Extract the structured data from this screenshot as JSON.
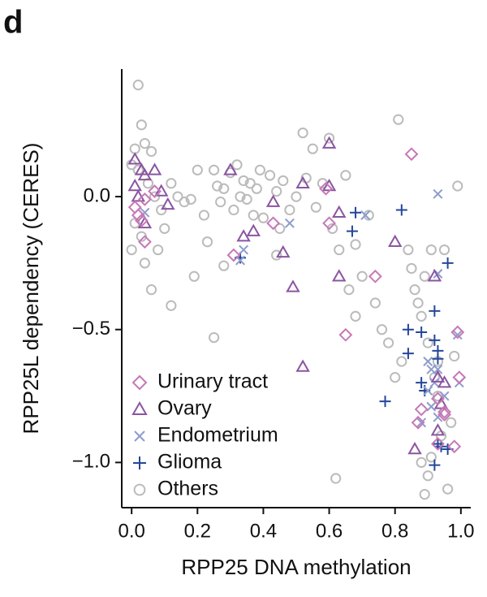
{
  "chart_data": {
    "type": "scatter",
    "panel_label": "d",
    "xlabel": "RPP25 DNA methylation",
    "ylabel": "RPP25L dependency (CERES)",
    "xlim": [
      -0.03,
      1.03
    ],
    "ylim": [
      -1.17,
      0.48
    ],
    "xticks": [
      {
        "value": 0,
        "label": "0.0"
      },
      0.2,
      0.4,
      0.6,
      0.8,
      {
        "value": 1,
        "label": "1.0"
      }
    ],
    "yticks": [
      {
        "value": 0,
        "label": "0.0"
      },
      {
        "value": -0.5,
        "label": "−0.5"
      },
      {
        "value": -1,
        "label": "−1.0"
      }
    ],
    "grid": false,
    "legend": "lower left",
    "series": [
      {
        "name": "Urinary tract",
        "color": "#c678b6",
        "marker": "diamond",
        "x": [
          0.85,
          0.995,
          0.74,
          0.65,
          0.59,
          0.6,
          0.43,
          0.31,
          0.04,
          0.02,
          0.04,
          0.01,
          0.07,
          0.99,
          0.87,
          0.88,
          0.95,
          0.93,
          0.95,
          0.93,
          0.98,
          0.03
        ],
        "values": [
          0.16,
          -0.68,
          -0.3,
          -0.52,
          0.03,
          -0.1,
          -0.1,
          -0.22,
          -0.17,
          -0.07,
          -0.01,
          -0.04,
          0.02,
          -0.51,
          -0.85,
          -0.8,
          -0.82,
          -0.76,
          -0.81,
          -0.93,
          -0.94,
          -0.09
        ]
      },
      {
        "name": "Ovary",
        "color": "#8a55a0",
        "marker": "triangle",
        "x": [
          0.6,
          0.01,
          0.03,
          0.04,
          0.07,
          0.3,
          0.43,
          0.52,
          0.6,
          0.09,
          0.11,
          0.37,
          0.34,
          0.46,
          0.49,
          0.52,
          0.63,
          0.8,
          0.01,
          0.02,
          0.04,
          0.86,
          0.93,
          0.94,
          0.92,
          0.95,
          0.93,
          0.63
        ],
        "values": [
          0.2,
          0.14,
          0.1,
          0.08,
          0.1,
          0.1,
          -0.02,
          0.05,
          0.04,
          0.02,
          -0.03,
          -0.13,
          -0.15,
          -0.21,
          -0.34,
          -0.64,
          -0.3,
          -0.17,
          0.04,
          0.0,
          -0.1,
          -0.95,
          -0.88,
          -0.78,
          -0.3,
          -0.7,
          -0.68,
          -0.06
        ]
      },
      {
        "name": "Endometrium",
        "color": "#8e9ccc",
        "marker": "x",
        "x": [
          0.93,
          0.71,
          0.48,
          0.34,
          0.33,
          0.99,
          0.995,
          0.9,
          0.91,
          0.92,
          0.93,
          0.9,
          0.93,
          0.95,
          0.88,
          0.91,
          0.04,
          0.93
        ],
        "values": [
          0.01,
          -0.07,
          -0.1,
          -0.2,
          -0.24,
          -0.52,
          -0.7,
          -0.62,
          -0.65,
          -0.7,
          -0.65,
          -0.73,
          -0.83,
          -0.75,
          -0.85,
          -0.79,
          -0.06,
          -0.29
        ]
      },
      {
        "name": "Glioma",
        "color": "#24479a",
        "marker": "plus",
        "x": [
          0.68,
          0.67,
          0.82,
          0.96,
          0.33,
          0.92,
          0.84,
          0.88,
          0.92,
          0.93,
          0.93,
          0.84,
          0.77,
          0.88,
          0.89,
          0.93,
          0.96,
          0.92,
          0.94
        ],
        "values": [
          -0.06,
          -0.13,
          -0.05,
          -0.25,
          -0.23,
          -0.43,
          -0.5,
          -0.51,
          -0.54,
          -0.58,
          -0.61,
          -0.59,
          -0.77,
          -0.7,
          -0.73,
          -0.93,
          -0.95,
          -1.01,
          -0.94
        ]
      },
      {
        "name": "Others",
        "color": "#bbbbbb",
        "marker": "circle",
        "x": [
          0.02,
          0.03,
          0.01,
          0.04,
          0.06,
          0.0,
          0.02,
          0.05,
          0.07,
          0.09,
          0.01,
          0.03,
          0.0,
          0.04,
          0.08,
          0.1,
          0.12,
          0.14,
          0.06,
          0.12,
          0.16,
          0.18,
          0.2,
          0.22,
          0.23,
          0.19,
          0.25,
          0.26,
          0.27,
          0.28,
          0.3,
          0.31,
          0.32,
          0.33,
          0.34,
          0.35,
          0.36,
          0.37,
          0.38,
          0.39,
          0.4,
          0.42,
          0.44,
          0.45,
          0.46,
          0.48,
          0.5,
          0.52,
          0.53,
          0.55,
          0.56,
          0.58,
          0.6,
          0.61,
          0.63,
          0.65,
          0.66,
          0.68,
          0.7,
          0.72,
          0.74,
          0.76,
          0.78,
          0.8,
          0.81,
          0.82,
          0.84,
          0.85,
          0.86,
          0.87,
          0.88,
          0.89,
          0.9,
          0.91,
          0.92,
          0.93,
          0.94,
          0.95,
          0.96,
          0.97,
          0.98,
          0.99,
          0.88,
          0.9,
          0.89,
          0.91,
          0.93,
          0.62,
          0.28,
          0.25,
          0.68,
          0.44
        ],
        "values": [
          0.42,
          0.27,
          0.18,
          0.2,
          0.17,
          0.12,
          0.1,
          0.05,
          0.0,
          -0.05,
          -0.1,
          -0.15,
          -0.2,
          -0.25,
          -0.2,
          -0.12,
          0.05,
          0.0,
          -0.35,
          -0.41,
          -0.02,
          -0.01,
          0.1,
          -0.07,
          -0.17,
          -0.3,
          0.1,
          0.04,
          -0.02,
          0.03,
          0.09,
          -0.05,
          0.12,
          0.0,
          0.06,
          -0.01,
          0.05,
          -0.07,
          0.03,
          0.1,
          -0.08,
          0.08,
          0.02,
          -0.12,
          0.06,
          -0.05,
          0.0,
          0.24,
          0.07,
          0.18,
          -0.04,
          0.05,
          0.22,
          -0.12,
          -0.2,
          0.08,
          -0.35,
          -0.45,
          -0.3,
          -0.07,
          -0.4,
          -0.5,
          -0.55,
          -0.68,
          0.29,
          -0.62,
          -0.2,
          -0.27,
          -0.35,
          -0.4,
          -0.45,
          -0.3,
          -0.55,
          -0.2,
          -0.68,
          -0.75,
          -0.9,
          -0.2,
          -1.1,
          -0.85,
          -0.6,
          0.04,
          -1.0,
          -1.05,
          -1.12,
          -0.98,
          -0.62,
          -1.06,
          -0.26,
          -0.53,
          -0.18,
          -0.22
        ]
      }
    ]
  }
}
